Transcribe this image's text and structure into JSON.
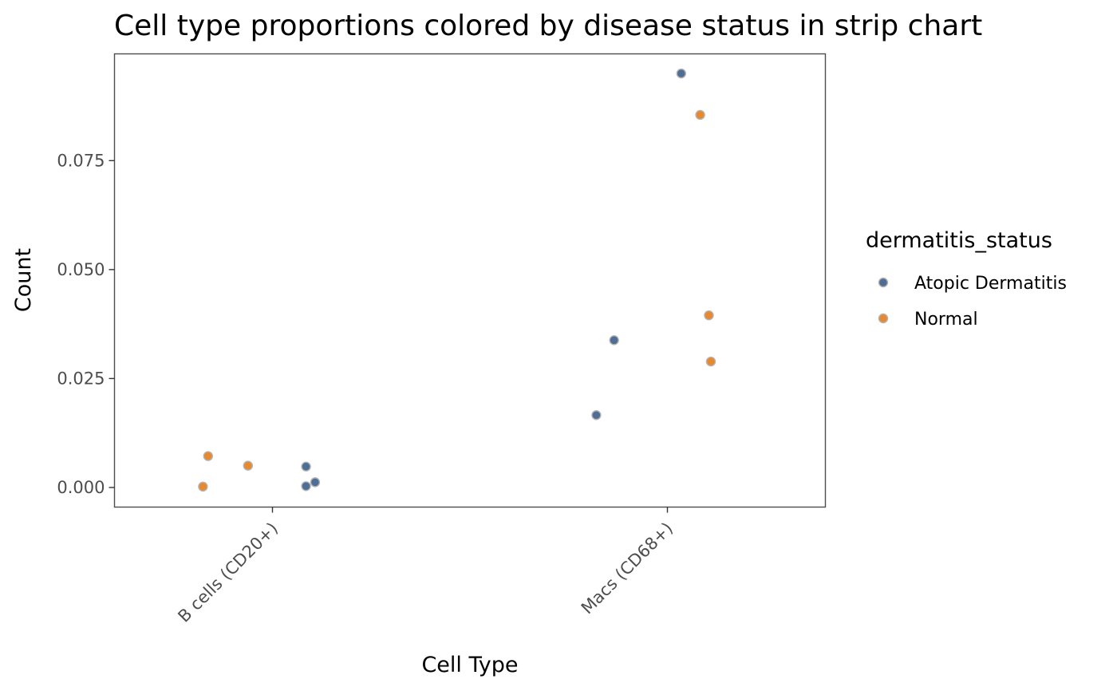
{
  "chart_data": {
    "type": "scatter",
    "title": "Cell type proportions colored by disease status in strip chart",
    "xlabel": "Cell Type",
    "ylabel": "Count",
    "categories": [
      "B cells (CD20+)",
      "Macs (CD68+)"
    ],
    "ylim": [
      -0.0045,
      0.0995
    ],
    "yticks": [
      0.0,
      0.025,
      0.05,
      0.075
    ],
    "ytick_labels": [
      "0.000",
      "0.025",
      "0.050",
      "0.075"
    ],
    "grid": false,
    "legend": {
      "title": "dermatitis_status",
      "placement": "right"
    },
    "series": [
      {
        "name": "Atopic Dermatitis",
        "color": "#4E6E96",
        "points": [
          {
            "category": "B cells (CD20+)",
            "jitter": 0.085,
            "y": 0.0048
          },
          {
            "category": "B cells (CD20+)",
            "jitter": 0.085,
            "y": 0.0003
          },
          {
            "category": "B cells (CD20+)",
            "jitter": 0.108,
            "y": 0.0012
          },
          {
            "category": "Macs (CD68+)",
            "jitter": -0.18,
            "y": 0.0166
          },
          {
            "category": "Macs (CD68+)",
            "jitter": -0.135,
            "y": 0.0338
          },
          {
            "category": "Macs (CD68+)",
            "jitter": 0.035,
            "y": 0.095
          }
        ]
      },
      {
        "name": "Normal",
        "color": "#E8892F",
        "points": [
          {
            "category": "B cells (CD20+)",
            "jitter": -0.163,
            "y": 0.0072
          },
          {
            "category": "B cells (CD20+)",
            "jitter": -0.062,
            "y": 0.005
          },
          {
            "category": "B cells (CD20+)",
            "jitter": -0.176,
            "y": 0.0002
          },
          {
            "category": "Macs (CD68+)",
            "jitter": 0.083,
            "y": 0.0855
          },
          {
            "category": "Macs (CD68+)",
            "jitter": 0.105,
            "y": 0.0395
          },
          {
            "category": "Macs (CD68+)",
            "jitter": 0.11,
            "y": 0.0289
          }
        ]
      }
    ]
  }
}
